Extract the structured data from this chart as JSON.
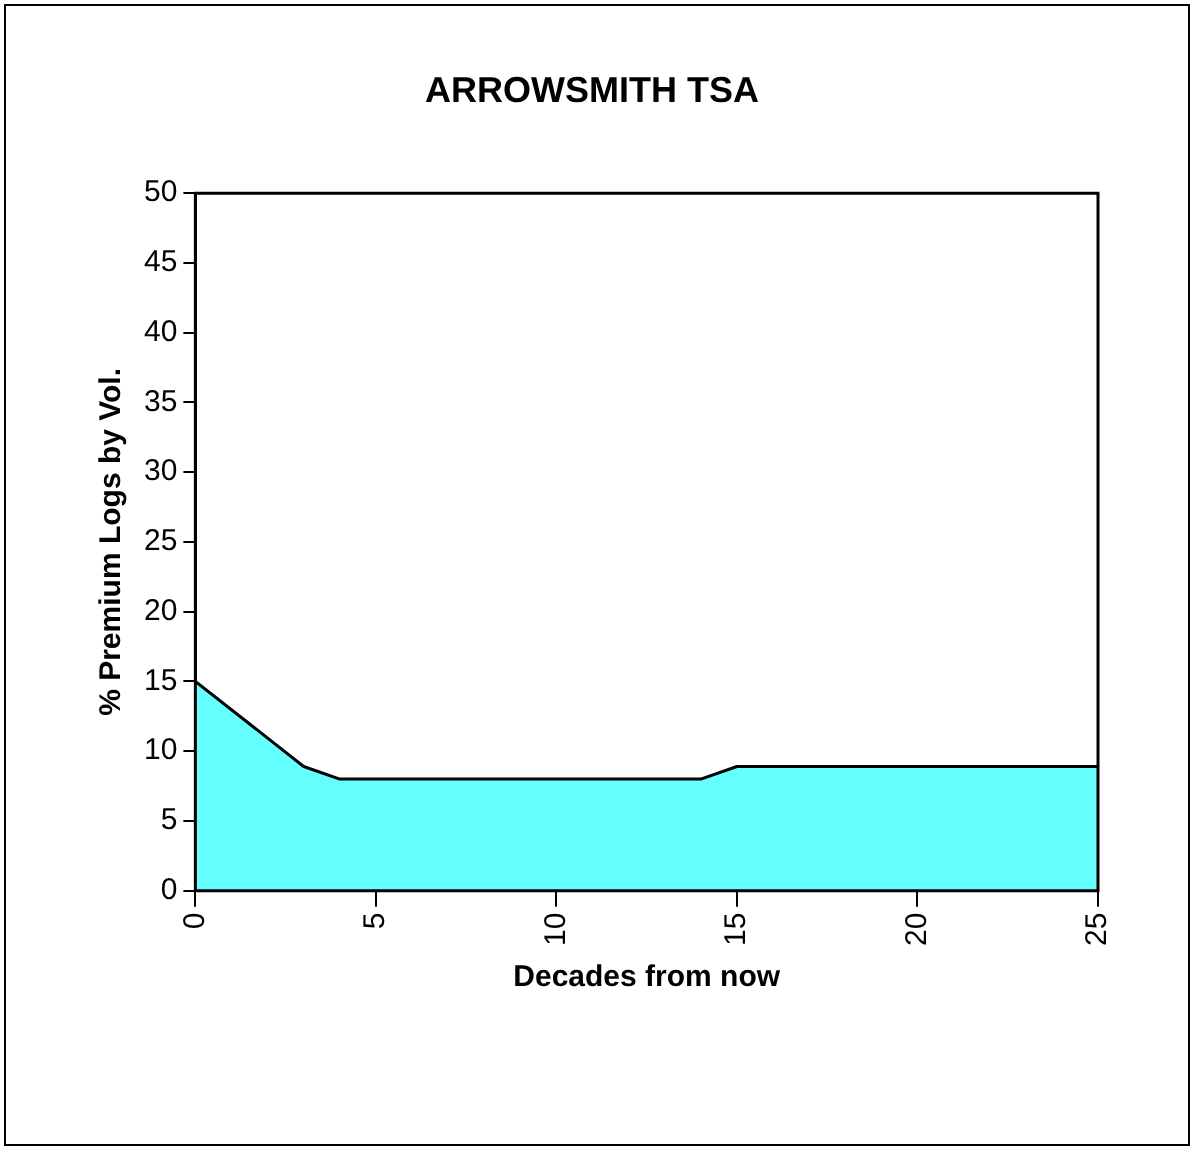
{
  "chart_data": {
    "type": "area",
    "title": "ARROWSMITH TSA",
    "xlabel": "Decades from now",
    "ylabel": "% Premium Logs by Vol.",
    "x": [
      0,
      3,
      4,
      14,
      15,
      25
    ],
    "series": [
      {
        "color": "#66ffff",
        "values": [
          15,
          8.9,
          8,
          8,
          8.9,
          8.9
        ]
      }
    ],
    "xlim": [
      0,
      25
    ],
    "xticks": [
      0,
      5,
      10,
      15,
      20,
      25
    ],
    "ylim": [
      0,
      50
    ],
    "yticks": [
      0,
      5,
      10,
      15,
      20,
      25,
      30,
      35,
      40,
      45,
      50
    ],
    "grid": false,
    "legend": false
  }
}
